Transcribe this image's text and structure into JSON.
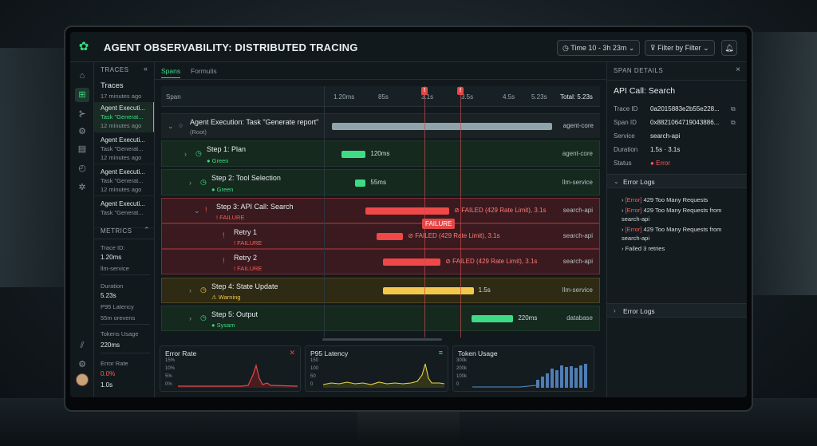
{
  "app": {
    "title": "AGENT OBSERVABILITY: DISTRIBUTED TRACING",
    "time_button": "Time 10 - 3h 23m",
    "filter_button": "Filter by Filter"
  },
  "sidebar": {
    "traces_heading": "TRACES",
    "traces": [
      {
        "title": "Traces",
        "sub": "",
        "time": "17 minutes ago"
      },
      {
        "title": "Agent Executi...",
        "sub": "Task \"Generat...",
        "time": "12 minutes ago"
      },
      {
        "title": "Agent Executi...",
        "sub": "Task \"Generat...",
        "time": "12 minutes ago"
      },
      {
        "title": "Agent Executi...",
        "sub": "Task \"Generat...",
        "time": "12 minutes ago"
      },
      {
        "title": "Agent Executi...",
        "sub": "Task \"Generat..."
      }
    ],
    "metrics_heading": "METRICS",
    "metrics": [
      {
        "label": "Trace ID:",
        "value": "1.20ms",
        "extra": "llm-service"
      },
      {
        "label": "Duration",
        "value": "5.23s",
        "extra": "P95 Latency"
      },
      {
        "label": "",
        "value": "55m orevens",
        "extra": ""
      },
      {
        "label": "Tokens Usage",
        "value": "220ms",
        "extra": ""
      },
      {
        "label": "Error Rate",
        "value": "0.0%",
        "extra": "1.0s"
      }
    ]
  },
  "tabs": [
    "Spans",
    "Formulis"
  ],
  "timeline": {
    "span_col": "Span",
    "ticks": [
      "1.20ms",
      "85s",
      "3.1s",
      "3.5s",
      "4.5s",
      "5.23s"
    ],
    "total": "Total: 5.23s",
    "failure_tip": "FAILURE"
  },
  "spans": [
    {
      "name": "Agent Execution: Task \"Generate report\"",
      "status": "(Root)",
      "service": "agent-core",
      "bar_label": "",
      "start": 0.0,
      "end": 1.0
    },
    {
      "name": "Step 1: Plan",
      "status": "Green",
      "service": "agent-core",
      "bar_label": "120ms",
      "start": 0.04,
      "end": 0.15
    },
    {
      "name": "Step 2: Tool Selection",
      "status": "Green",
      "service": "llm-service",
      "bar_label": "55ms",
      "start": 0.1,
      "end": 0.15
    },
    {
      "name": "Step 3: API Call: Search",
      "status": "FAILURE",
      "service": "search-api",
      "bar_label": "FAILED (429 Rate Limit), 3.1s",
      "start": 0.15,
      "end": 0.53
    },
    {
      "name": "Retry 1",
      "status": "FAILURE",
      "service": "search-api",
      "bar_label": "FAILED (429 Rate Limit), 3.1s",
      "start": 0.2,
      "end": 0.32
    },
    {
      "name": "Retry 2",
      "status": "FAILURE",
      "service": "search-api",
      "bar_label": "FAILED (429 Rate Limit), 3.1s",
      "start": 0.23,
      "end": 0.49
    },
    {
      "name": "Step 4: State Update",
      "status": "Warning",
      "service": "llm-service",
      "bar_label": "1.5s",
      "start": 0.23,
      "end": 0.64
    },
    {
      "name": "Step 5: Output",
      "status": "Sysam",
      "service": "database",
      "bar_label": "220ms",
      "start": 0.63,
      "end": 0.82
    }
  ],
  "cards": {
    "error_rate": {
      "title": "Error Rate",
      "yticks": [
        "15%",
        "10%",
        "5%",
        "0%"
      ]
    },
    "p95": {
      "title": "P95 Latency",
      "yticks": [
        "150",
        "100",
        "50",
        "0"
      ]
    },
    "tokens": {
      "title": "Token Usage",
      "yticks": [
        "300k",
        "200k",
        "100k",
        "0"
      ]
    }
  },
  "details": {
    "heading": "SPAN DETAILS",
    "title": "API Call: Search",
    "fields": [
      {
        "k": "Trace ID",
        "v": "0a2015883e2b55e228..."
      },
      {
        "k": "Span ID",
        "v": "0x8821064719043886..."
      },
      {
        "k": "Service",
        "v": "search-api"
      },
      {
        "k": "Duration",
        "v": "1.5s · 3.1s"
      },
      {
        "k": "Status",
        "v": "Error"
      }
    ],
    "error_logs_heading": "Error Logs",
    "logs": [
      {
        "tag": "[Error]",
        "text": "429 Too Many Requests"
      },
      {
        "tag": "[Error]",
        "text": "429 Too Many Requests from search-api"
      },
      {
        "tag": "[Error]",
        "text": "429 Too Many Requests from search-api"
      },
      {
        "tag": "",
        "text": "Failed 3 retries"
      }
    ],
    "error_logs_collapsed": "Error Logs"
  },
  "colors": {
    "accent": "#3ddc84",
    "error": "#e34848",
    "warning": "#f2c94c",
    "root_bar": "#8fa3ab"
  }
}
